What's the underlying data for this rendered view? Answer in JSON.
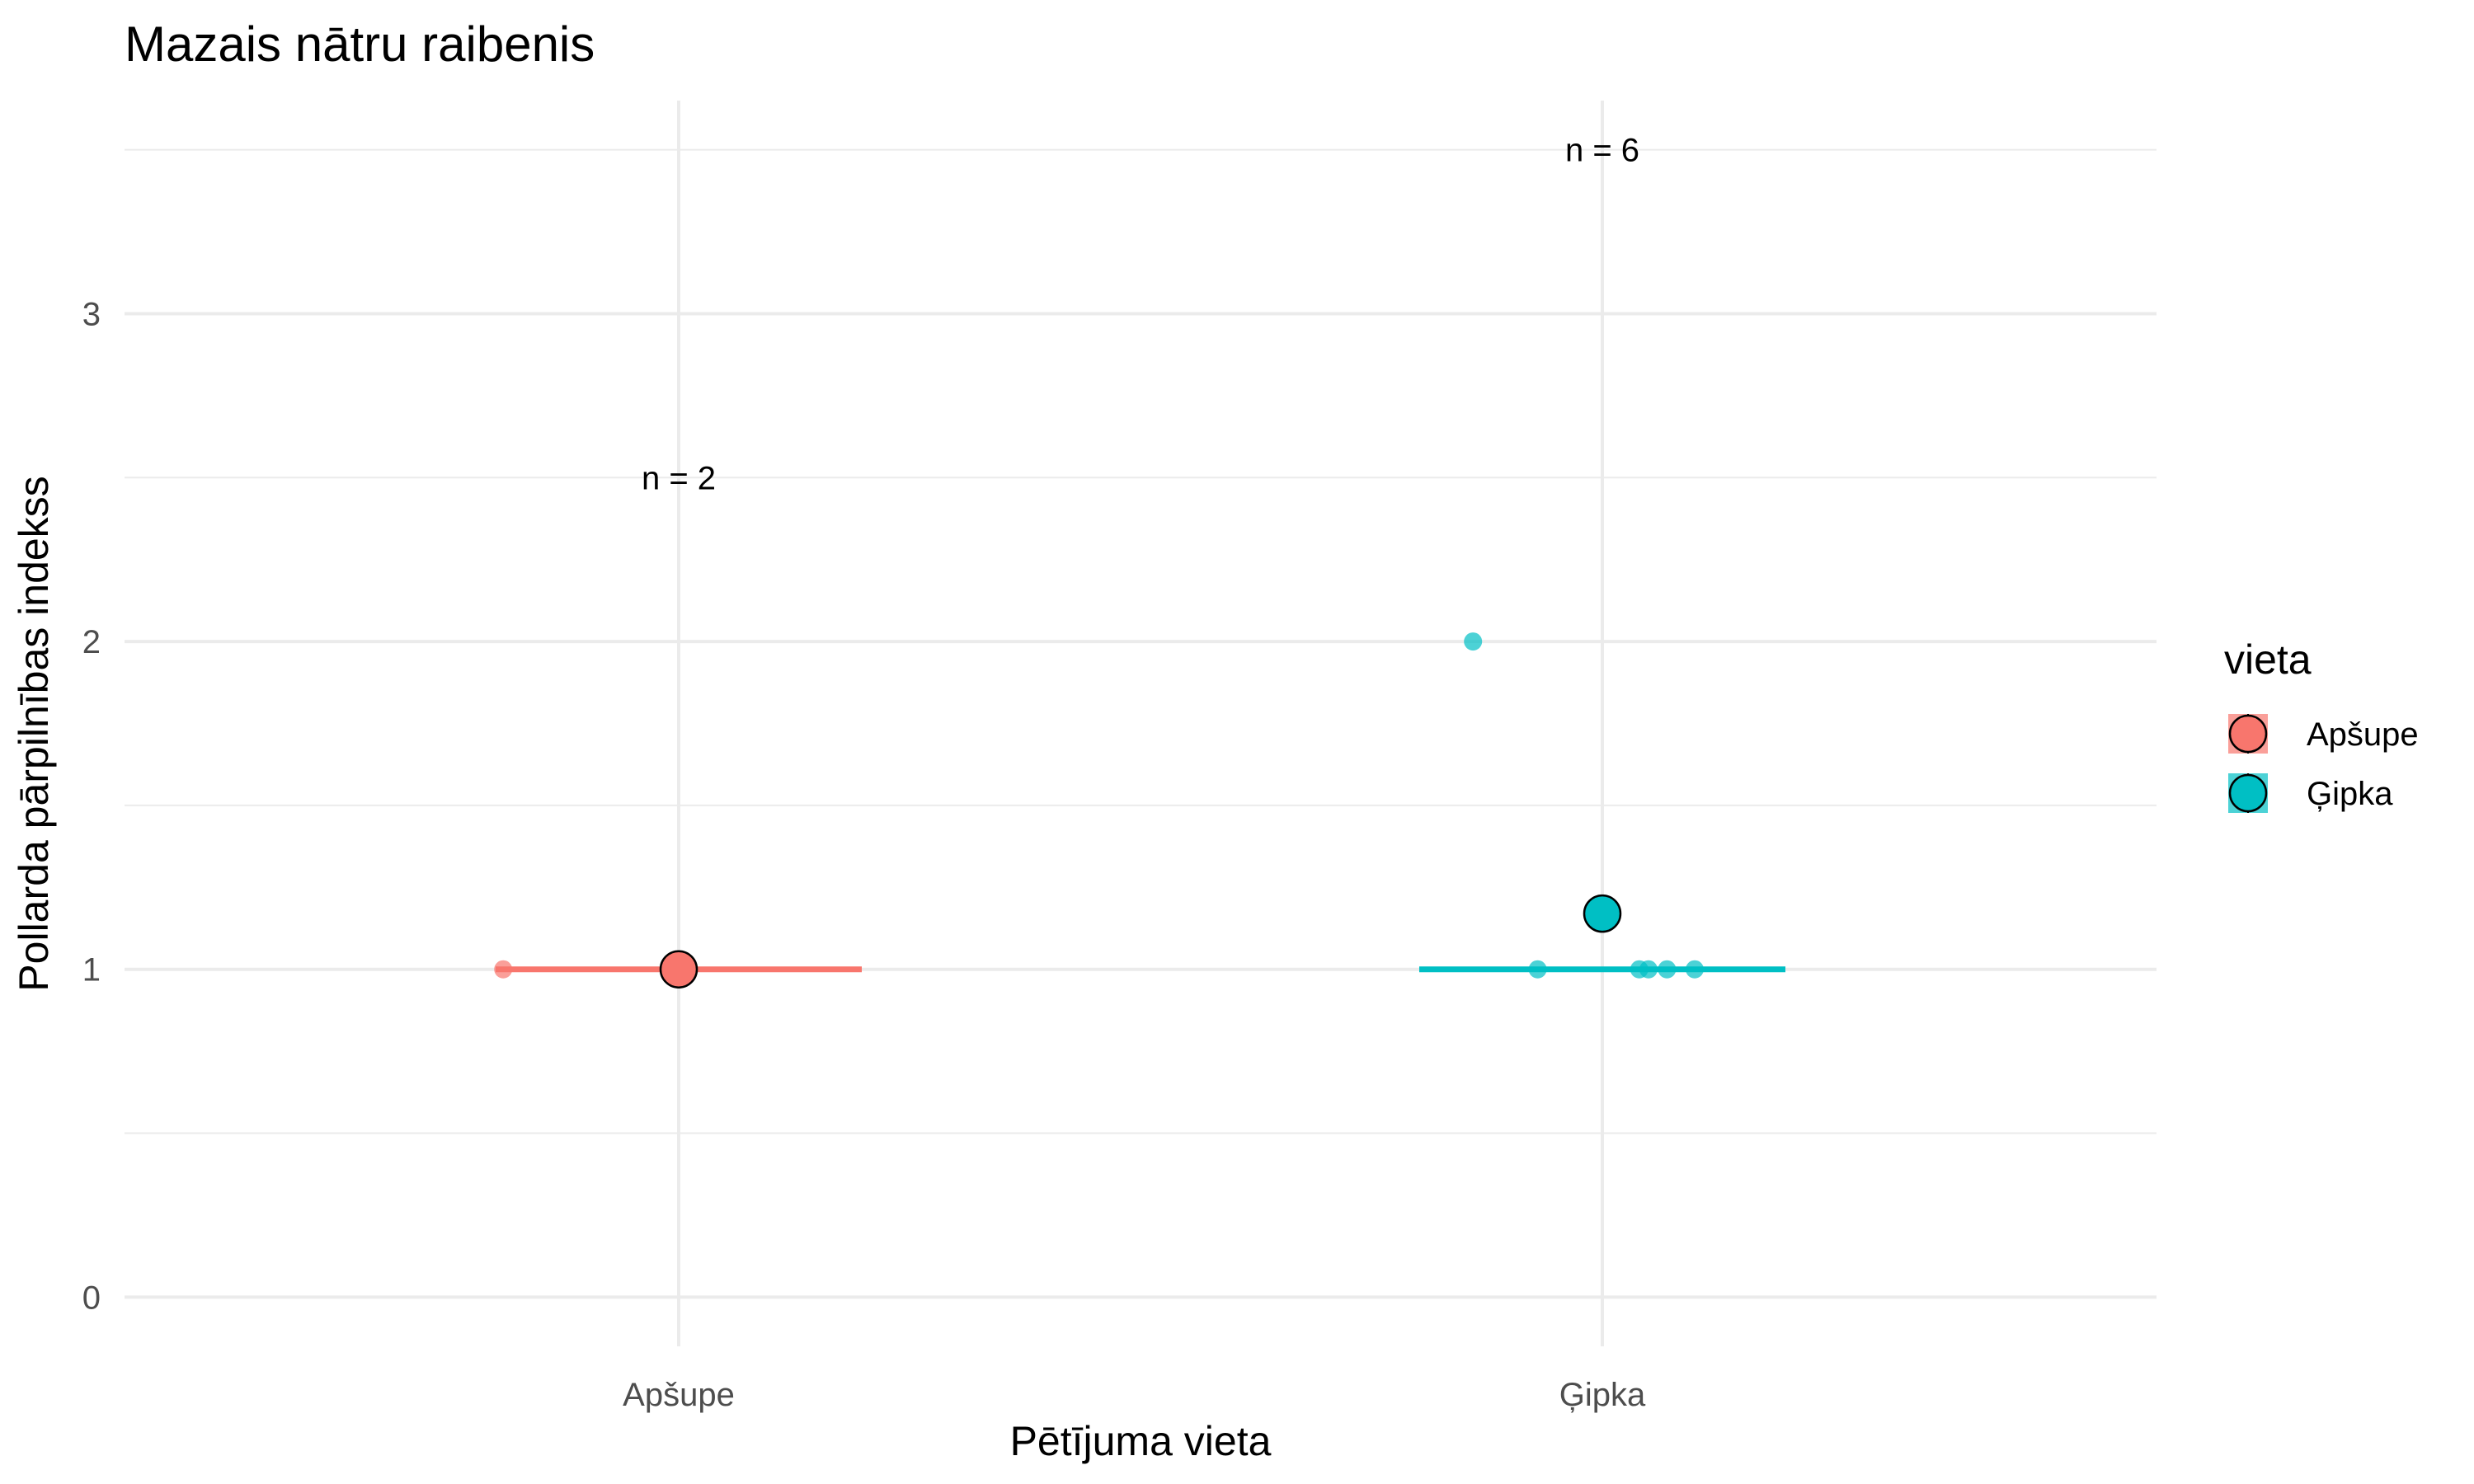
{
  "chart_data": {
    "type": "scatter",
    "title": "Mazais nātru raibenis",
    "xlabel": "Pētījuma vieta",
    "ylabel": "Pollarda pārpilnības indekss",
    "categories": [
      "Apšupe",
      "Ģipka"
    ],
    "ylim": [
      -0.15,
      3.65
    ],
    "yticks": [
      0,
      1,
      2,
      3
    ],
    "grid": true,
    "legend": {
      "title": "vieta",
      "position": "right",
      "entries": [
        "Apšupe",
        "Ģipka"
      ]
    },
    "colors": {
      "Apšupe": "#F8766D",
      "Ģipka": "#00BFC4"
    },
    "series": [
      {
        "name": "Apšupe",
        "points": [
          {
            "x": "Apšupe",
            "y": 1
          },
          {
            "x": "Apšupe",
            "y": 1
          }
        ],
        "jitter": [
          -0.19,
          0.0
        ],
        "mean": 1.0,
        "median": 1.0,
        "n_label": "n = 2",
        "n_label_y": 2.5
      },
      {
        "name": "Ģipka",
        "points": [
          {
            "x": "Ģipka",
            "y": 2
          },
          {
            "x": "Ģipka",
            "y": 1
          },
          {
            "x": "Ģipka",
            "y": 1
          },
          {
            "x": "Ģipka",
            "y": 1
          },
          {
            "x": "Ģipka",
            "y": 1
          },
          {
            "x": "Ģipka",
            "y": 1
          }
        ],
        "jitter": [
          -0.14,
          -0.07,
          0.04,
          0.05,
          0.07,
          0.1
        ],
        "mean": 1.17,
        "median": 1.0,
        "n_label": "n = 6",
        "n_label_y": 3.5
      }
    ]
  }
}
